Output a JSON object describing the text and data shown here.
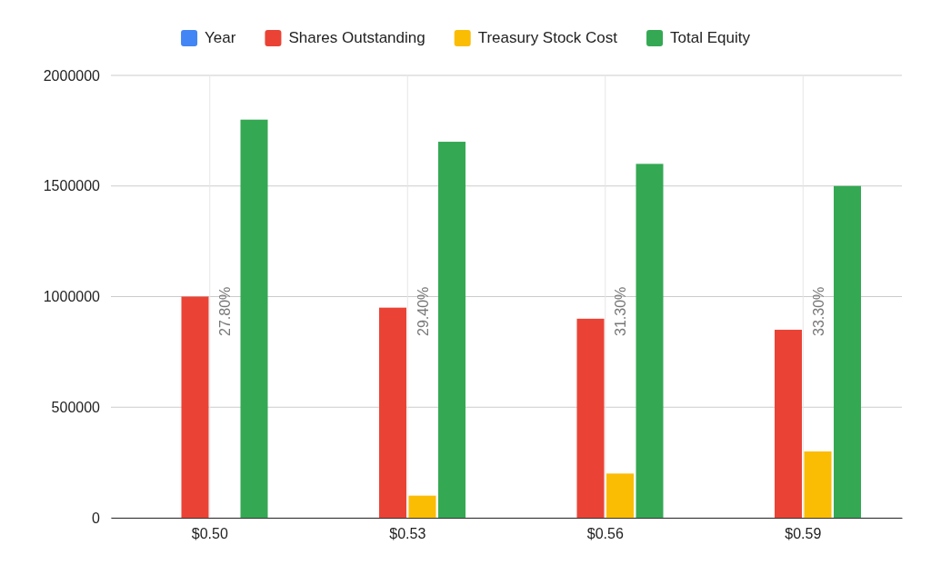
{
  "chart_data": {
    "type": "bar",
    "categories": [
      "$0.50",
      "$0.53",
      "$0.56",
      "$0.59"
    ],
    "series": [
      {
        "name": "Year",
        "color": "#4285f4",
        "values": [
          null,
          null,
          null,
          null
        ]
      },
      {
        "name": "Shares Outstanding",
        "color": "#ea4335",
        "values": [
          1000000,
          950000,
          900000,
          850000
        ]
      },
      {
        "name": "Treasury Stock Cost",
        "color": "#fbbc04",
        "values": [
          0,
          100000,
          200000,
          300000
        ]
      },
      {
        "name": "Total Equity",
        "color": "#34a853",
        "values": [
          1800000,
          1700000,
          1600000,
          1500000
        ]
      }
    ],
    "ylim": [
      0,
      2000000
    ],
    "yticks": [
      0,
      500000,
      1000000,
      1500000,
      2000000
    ],
    "grid": true,
    "legend": "top",
    "annotations": [
      "27.80%",
      "29.40%",
      "31.30%",
      "33.30%"
    ]
  }
}
